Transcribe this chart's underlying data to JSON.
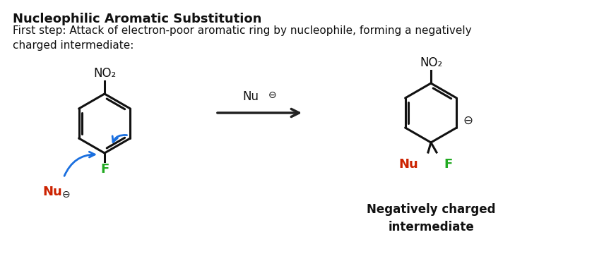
{
  "title": "Nucleophilic Aromatic Substitution",
  "subtitle": "First step: Attack of electron-poor aromatic ring by nucleophile, forming a negatively\ncharged intermediate:",
  "bg_color": "#ffffff",
  "title_fontsize": 13,
  "subtitle_fontsize": 11,
  "arrow_color": "#222222",
  "blue_arrow_color": "#1a6fdf",
  "nu_color": "#cc2200",
  "f_color": "#22aa22",
  "black_color": "#111111",
  "label_negcharge": "⊖",
  "label_nu": "Nu",
  "label_f": "F",
  "label_no2": "NO₂",
  "label_reaction_nu": "Nu",
  "label_neg_intermediate": "Negatively charged\nintermediate"
}
